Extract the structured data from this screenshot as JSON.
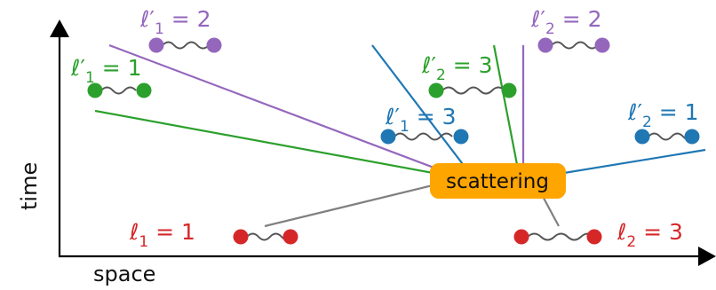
{
  "axes": {
    "x_label": "space",
    "y_label": "time"
  },
  "scattering_label": "scattering",
  "colors": {
    "purple": "#9467bd",
    "green": "#2ca02c",
    "blue": "#1f77b4",
    "red": "#d62728",
    "gray": "#808080",
    "orange": "#ffa500",
    "axis": "#000000"
  },
  "labels": {
    "l1p_purple": {
      "base": "ℓ",
      "prime": "′",
      "sub": "1",
      "eq": " = 2"
    },
    "l2p_purple": {
      "base": "ℓ",
      "prime": "′",
      "sub": "2",
      "eq": " = 2"
    },
    "l1p_green": {
      "base": "ℓ",
      "prime": "′",
      "sub": "1",
      "eq": " = 1"
    },
    "l2p_green": {
      "base": "ℓ",
      "prime": "′",
      "sub": "2",
      "eq": " = 3"
    },
    "l1p_blue": {
      "base": "ℓ",
      "prime": "′",
      "sub": "1",
      "eq": " = 3"
    },
    "l2p_blue": {
      "base": "ℓ",
      "prime": "′",
      "sub": "2",
      "eq": " = 1"
    },
    "l1_red": {
      "base": "ℓ",
      "prime": "",
      "sub": "1",
      "eq": " = 1"
    },
    "l2_red": {
      "base": "ℓ",
      "prime": "",
      "sub": "2",
      "eq": " = 3"
    }
  }
}
